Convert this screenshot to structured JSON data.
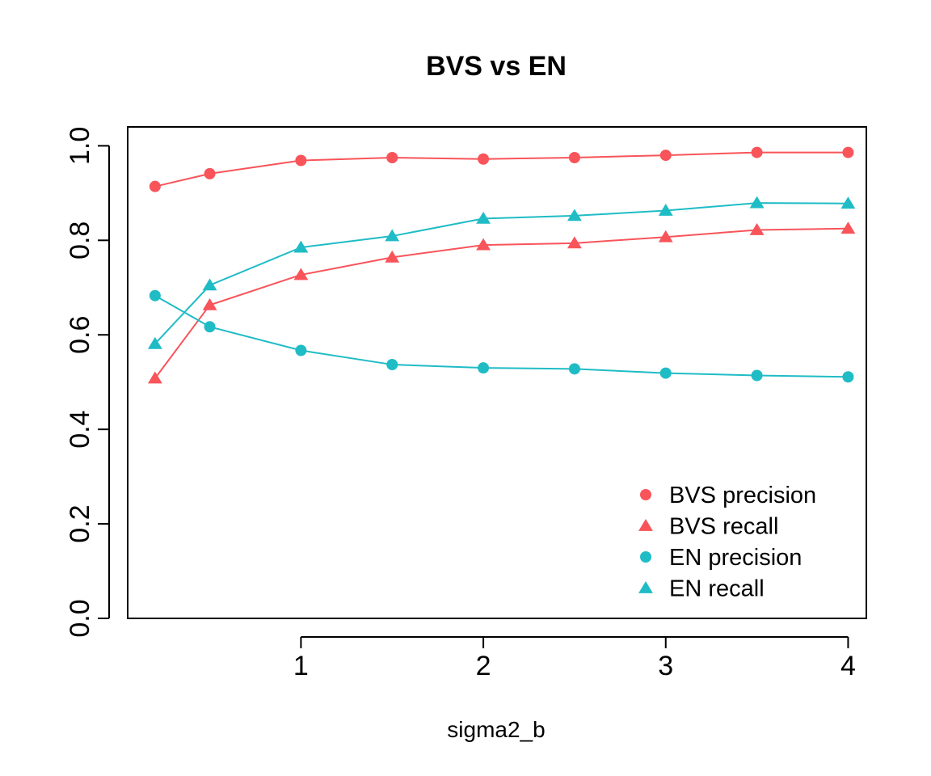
{
  "chart_data": {
    "type": "line",
    "title": "BVS vs EN",
    "xlabel": "sigma2_b",
    "ylabel": "",
    "x": [
      0.2,
      0.5,
      1.0,
      1.5,
      2.0,
      2.5,
      3.0,
      3.5,
      4.0
    ],
    "xlim": [
      0.05,
      4.1
    ],
    "ylim": [
      0.0,
      1.04
    ],
    "xticks": [
      "1",
      "2",
      "3",
      "4"
    ],
    "yticks": [
      "0.0",
      "0.2",
      "0.4",
      "0.6",
      "0.8",
      "1.0"
    ],
    "grid": false,
    "legend_position": "bottom-right",
    "series": [
      {
        "name": "BVS precision",
        "color": "#F8545A",
        "marker": "circle",
        "values": [
          0.914,
          0.941,
          0.969,
          0.975,
          0.972,
          0.975,
          0.98,
          0.986,
          0.986
        ]
      },
      {
        "name": "BVS recall",
        "color": "#F8545A",
        "marker": "triangle",
        "values": [
          0.508,
          0.663,
          0.727,
          0.764,
          0.79,
          0.794,
          0.807,
          0.822,
          0.825
        ]
      },
      {
        "name": "EN precision",
        "color": "#1FBCC6",
        "marker": "circle",
        "values": [
          0.683,
          0.617,
          0.567,
          0.537,
          0.53,
          0.528,
          0.519,
          0.514,
          0.511
        ]
      },
      {
        "name": "EN recall",
        "color": "#1FBCC6",
        "marker": "triangle",
        "values": [
          0.581,
          0.705,
          0.785,
          0.809,
          0.846,
          0.852,
          0.863,
          0.879,
          0.878
        ]
      }
    ]
  }
}
